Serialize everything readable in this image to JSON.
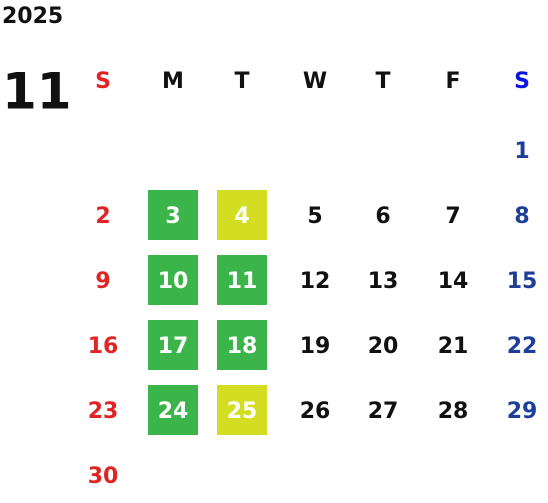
{
  "header": {
    "year": "2025",
    "month": "11"
  },
  "weekdays": [
    "S",
    "M",
    "T",
    "W",
    "T",
    "F",
    "S"
  ],
  "weeks": [
    [
      null,
      null,
      null,
      null,
      null,
      null,
      {
        "day": 1
      }
    ],
    [
      {
        "day": 2
      },
      {
        "day": 3,
        "bg": "#3bb54a"
      },
      {
        "day": 4,
        "bg": "#d3de22"
      },
      {
        "day": 5
      },
      {
        "day": 6
      },
      {
        "day": 7
      },
      {
        "day": 8
      }
    ],
    [
      {
        "day": 9
      },
      {
        "day": 10,
        "bg": "#3bb54a"
      },
      {
        "day": 11,
        "bg": "#3bb54a"
      },
      {
        "day": 12
      },
      {
        "day": 13
      },
      {
        "day": 14
      },
      {
        "day": 15
      }
    ],
    [
      {
        "day": 16
      },
      {
        "day": 17,
        "bg": "#3bb54a"
      },
      {
        "day": 18,
        "bg": "#3bb54a"
      },
      {
        "day": 19
      },
      {
        "day": 20
      },
      {
        "day": 21
      },
      {
        "day": 22
      }
    ],
    [
      {
        "day": 23
      },
      {
        "day": 24,
        "bg": "#3bb54a"
      },
      {
        "day": 25,
        "bg": "#d3de22"
      },
      {
        "day": 26
      },
      {
        "day": 27
      },
      {
        "day": 28
      },
      {
        "day": 29
      }
    ],
    [
      {
        "day": 30
      },
      null,
      null,
      null,
      null,
      null,
      null
    ]
  ]
}
